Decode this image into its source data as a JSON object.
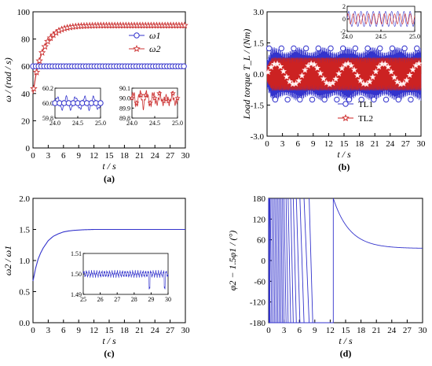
{
  "chart_data": [
    {
      "panel_label": "(a)",
      "type": "line",
      "ylabel": "ω / (rad / s)",
      "xlabel": "t / s",
      "xlim": [
        0,
        30
      ],
      "ylim": [
        0,
        100
      ],
      "xticks": [
        "0",
        "3",
        "6",
        "9",
        "12",
        "15",
        "18",
        "21",
        "24",
        "27",
        "30"
      ],
      "yticks": [
        "0",
        "20",
        "40",
        "60",
        "80",
        "100"
      ],
      "legend_position": "center-right",
      "series": [
        {
          "name": "ω1",
          "color": "#3333cc",
          "marker": "circle",
          "steady_value": 60,
          "x": [
            0,
            0.1,
            0.3,
            1,
            30
          ],
          "y": [
            60,
            60,
            60,
            60,
            60
          ]
        },
        {
          "name": "ω2",
          "color": "#cc3333",
          "marker": "star",
          "steady_value": 90,
          "x": [
            0,
            0.5,
            1,
            1.5,
            2,
            3,
            4,
            5,
            6,
            7,
            8,
            9,
            10,
            12,
            14,
            16,
            30
          ],
          "y": [
            40,
            52,
            61,
            67,
            72,
            79,
            83,
            86,
            87.6,
            88.5,
            89.1,
            89.5,
            89.7,
            89.9,
            90,
            90,
            90
          ]
        }
      ],
      "insets": [
        {
          "series": "ω1",
          "xlim": [
            24.0,
            25.0
          ],
          "ylim": [
            59.8,
            60.2
          ],
          "xticks": [
            "24.0",
            "24.5",
            "25.0"
          ],
          "yticks": [
            "59.8",
            "60.0",
            "60.2"
          ]
        },
        {
          "series": "ω2",
          "xlim": [
            24.0,
            25.0
          ],
          "ylim": [
            89.8,
            90.1
          ],
          "xticks": [
            "24.0",
            "24.5",
            "25.0"
          ],
          "yticks": [
            "89.8",
            "89.9",
            "90.0",
            "90.1"
          ]
        }
      ]
    },
    {
      "panel_label": "(b)",
      "type": "line",
      "ylabel": "Load torque T_L / (Nm)",
      "xlabel": "t / s",
      "xlim": [
        0,
        30
      ],
      "ylim": [
        -3.0,
        3.0
      ],
      "xticks": [
        "0",
        "3",
        "6",
        "9",
        "12",
        "15",
        "18",
        "21",
        "24",
        "27",
        "30"
      ],
      "yticks": [
        "-3.0",
        "-1.5",
        "0.0",
        "1.5",
        "3.0"
      ],
      "legend_position": "bottom-right",
      "series": [
        {
          "name": "TL1",
          "color": "#3333cc",
          "marker": "circle",
          "amplitude": 1.3
        },
        {
          "name": "TL2",
          "color": "#cc2222",
          "marker": "star",
          "amplitude": 0.8
        }
      ],
      "insets": [
        {
          "xlim": [
            24.0,
            25.0
          ],
          "ylim": [
            -2,
            2
          ],
          "xticks": [
            "24.0",
            "24.5",
            "25.0"
          ],
          "yticks": [
            "-2",
            "0",
            "2"
          ]
        }
      ]
    },
    {
      "panel_label": "(c)",
      "type": "line",
      "ylabel": "ω2 / ω1",
      "xlabel": "t / s",
      "xlim": [
        0,
        30
      ],
      "ylim": [
        0.0,
        2.0
      ],
      "xticks": [
        "0",
        "3",
        "6",
        "9",
        "12",
        "15",
        "18",
        "21",
        "24",
        "27",
        "30"
      ],
      "yticks": [
        "0.0",
        "0.5",
        "1.0",
        "1.5",
        "2.0"
      ],
      "series": [
        {
          "color": "#3333cc",
          "x": [
            0,
            0.5,
            1,
            1.5,
            2,
            3,
            4,
            5,
            6,
            7,
            8,
            10,
            12,
            30
          ],
          "y": [
            0.67,
            0.87,
            1.02,
            1.12,
            1.2,
            1.32,
            1.39,
            1.43,
            1.46,
            1.475,
            1.485,
            1.495,
            1.5,
            1.5
          ]
        }
      ],
      "insets": [
        {
          "xlim": [
            25,
            30
          ],
          "ylim": [
            1.49,
            1.51
          ],
          "xticks": [
            "25",
            "26",
            "27",
            "28",
            "29",
            "30"
          ],
          "yticks": [
            "1.49",
            "1.50",
            "1.51"
          ]
        }
      ]
    },
    {
      "panel_label": "(d)",
      "type": "line",
      "ylabel": "φ2 − 1.5φ1 / (°)",
      "xlabel": "t / s",
      "xlim": [
        0,
        30
      ],
      "ylim": [
        -180,
        180
      ],
      "xticks": [
        "0",
        "3",
        "6",
        "9",
        "12",
        "15",
        "18",
        "21",
        "24",
        "27",
        "30"
      ],
      "yticks": [
        "-180",
        "-120",
        "-60",
        "0",
        "60",
        "120",
        "180"
      ],
      "series": [
        {
          "color": "#3333cc",
          "wrap_times": [
            0.3,
            0.6,
            0.9,
            1.2,
            1.5,
            1.8,
            2.1,
            2.4,
            2.7,
            3.0,
            3.4,
            3.8,
            4.3,
            4.8,
            5.4,
            6.1,
            6.9,
            7.9,
            8.6,
            12.6
          ],
          "decay_start": [
            12.6,
            180
          ],
          "steady_value": 35
        }
      ]
    }
  ],
  "fig_texts": {
    "a_xlabel": "t / s",
    "b_xlabel": "t / s",
    "c_xlabel": "t / s",
    "d_xlabel": "t / s"
  }
}
